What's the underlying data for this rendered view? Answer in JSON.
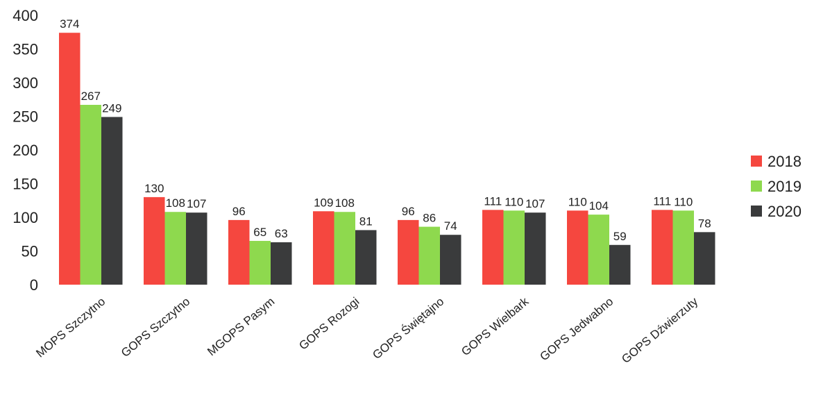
{
  "chart_data": {
    "type": "bar",
    "title": "",
    "xlabel": "",
    "ylabel": "",
    "ylim": [
      0,
      400
    ],
    "yticks": [
      0,
      50,
      100,
      150,
      200,
      250,
      300,
      350,
      400
    ],
    "grid": false,
    "legend_position": "right",
    "categories": [
      "MOPS Szczytno",
      "GOPS Szczytno",
      "MGOPS Pasym",
      "GOPS Rozogi",
      "GOPS Świętajno",
      "GOPS Wielbark",
      "GOPS Jedwabno",
      "GOPS Dźwierzuty"
    ],
    "series": [
      {
        "name": "2018",
        "color": "#f5473f",
        "values": [
          374,
          130,
          96,
          109,
          96,
          111,
          110,
          111
        ]
      },
      {
        "name": "2019",
        "color": "#8ed94e",
        "values": [
          267,
          108,
          65,
          108,
          86,
          110,
          104,
          110
        ]
      },
      {
        "name": "2020",
        "color": "#3a3b3c",
        "values": [
          249,
          107,
          63,
          81,
          74,
          107,
          59,
          78
        ]
      }
    ]
  }
}
